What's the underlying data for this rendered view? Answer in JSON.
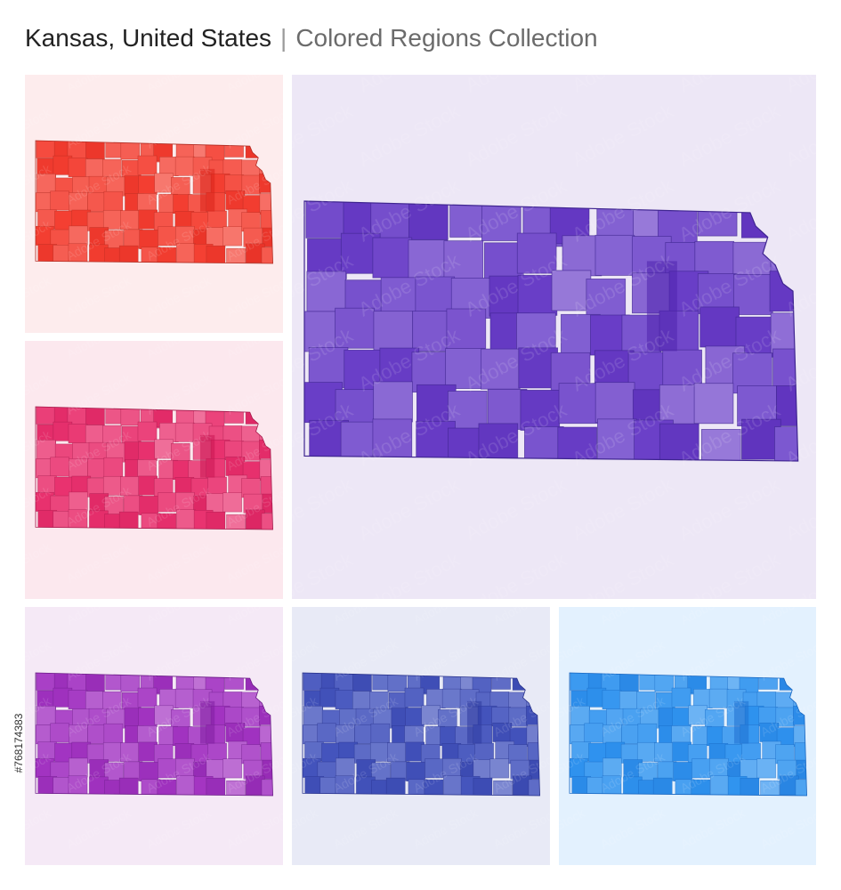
{
  "header": {
    "title": "Kansas, United States",
    "separator": "|",
    "subtitle": "Colored Regions Collection"
  },
  "stock_id": "#768174383",
  "watermark_text": "Adobe Stock",
  "map_panels": [
    {
      "id": "p-red",
      "region": "Kansas",
      "style": "red",
      "background": "#fdeced",
      "base": "#f43f32",
      "stroke": "#b02a20",
      "light": "#f7857c",
      "dark": "#d8231a"
    },
    {
      "id": "p-rose",
      "region": "Kansas",
      "style": "rose",
      "background": "#fce8ee",
      "base": "#e9326f",
      "stroke": "#a4184a",
      "light": "#f07ea3",
      "dark": "#c91552"
    },
    {
      "id": "p-purple",
      "region": "Kansas",
      "style": "purple",
      "background": "#ede7f6",
      "base": "#6a3fc8",
      "stroke": "#3f2590",
      "light": "#9a80dc",
      "dark": "#4f22ad"
    },
    {
      "id": "p-violet",
      "region": "Kansas",
      "style": "violet",
      "background": "#f5e9f6",
      "base": "#a334c2",
      "stroke": "#6a1a86",
      "light": "#c37fd9",
      "dark": "#7f1ea0"
    },
    {
      "id": "p-indigo",
      "region": "Kansas",
      "style": "indigo",
      "background": "#e8eaf6",
      "base": "#4454bd",
      "stroke": "#26308a",
      "light": "#8793d6",
      "dark": "#2d3a9e"
    },
    {
      "id": "p-blue",
      "region": "Kansas",
      "style": "blue",
      "background": "#e3f1fe",
      "base": "#2f93ef",
      "stroke": "#1565c0",
      "light": "#7ebdf5",
      "dark": "#1f6fd0"
    }
  ]
}
